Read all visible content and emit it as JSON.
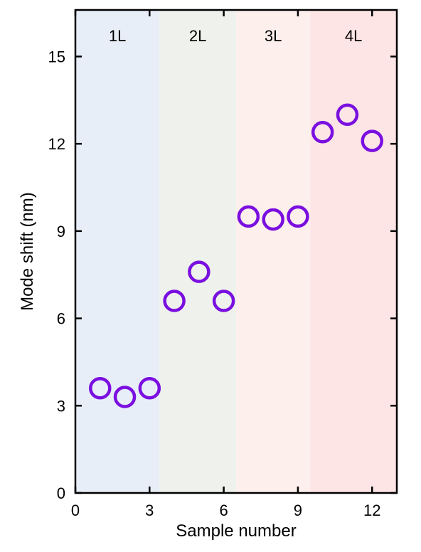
{
  "chart_data": {
    "type": "scatter",
    "xlabel": "Sample number",
    "ylabel": "Mode shift (nm)",
    "xlim": [
      0,
      13
    ],
    "ylim": [
      0,
      16.6
    ],
    "xticks": [
      0,
      3,
      6,
      9,
      12
    ],
    "yticks": [
      0,
      3,
      6,
      9,
      12,
      15
    ],
    "grid": false,
    "marker": {
      "shape": "open-circle",
      "color": "#7a0fe0"
    },
    "regions": [
      {
        "label": "1L",
        "x_start": 0,
        "x_end": 3.4,
        "color": "#e8eef8"
      },
      {
        "label": "2L",
        "x_start": 3.4,
        "x_end": 6.5,
        "color": "#eff2ec"
      },
      {
        "label": "3L",
        "x_start": 6.5,
        "x_end": 9.5,
        "color": "#fdf0ec"
      },
      {
        "label": "4L",
        "x_start": 9.5,
        "x_end": 13,
        "color": "#fde5e5"
      }
    ],
    "series": [
      {
        "x": [
          1,
          2,
          3,
          4,
          5,
          6,
          7,
          8,
          9,
          10,
          11,
          12
        ],
        "y": [
          3.6,
          3.3,
          3.6,
          6.6,
          7.6,
          6.6,
          9.5,
          9.4,
          9.5,
          12.4,
          13.0,
          12.1
        ]
      }
    ]
  }
}
